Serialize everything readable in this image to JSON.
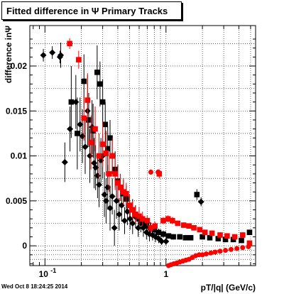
{
  "header": {
    "title": "Fitted difference in  Ψ   Primary Tracks",
    "timestamp": "Wed Oct  8 18:24:25 2014"
  },
  "colors": {
    "series_black": "#000000",
    "series_red": "#ff0000",
    "grid": "#000000"
  },
  "chart_data": {
    "type": "scatter",
    "xlabel": "pT/|q| (GeV/c)",
    "ylabel": "difference inΨ",
    "x_scale": "log",
    "xlim": [
      0.075,
      5.5
    ],
    "ylim": [
      -0.0022,
      0.0245
    ],
    "grid": true,
    "x_tick_labels": [
      "10",
      "1"
    ],
    "x_tick_exponent": "-1",
    "y_tick_labels": [
      "0",
      "0.005",
      "0.01",
      "0.015",
      "0.02"
    ],
    "y_ticks": [
      0,
      0.005,
      0.01,
      0.015,
      0.02
    ],
    "series": [
      {
        "marker": "diamond",
        "color": "#000000",
        "points": [
          [
            0.097,
            0.0212,
            0.0007
          ],
          [
            0.115,
            0.0215,
            0.0007
          ],
          [
            0.133,
            0.021,
            0.0007
          ],
          [
            0.135,
            0.0212,
            0.0014
          ],
          [
            0.146,
            0.0093,
            0.0022
          ],
          [
            0.161,
            0.013,
            0.0025
          ],
          [
            0.18,
            0.016,
            0.003
          ],
          [
            0.195,
            0.0135,
            0.003
          ],
          [
            0.204,
            0.0122,
            0.003
          ],
          [
            0.215,
            0.011,
            0.003
          ],
          [
            0.225,
            0.015,
            0.004
          ],
          [
            0.235,
            0.01,
            0.003
          ],
          [
            0.245,
            0.0132,
            0.003
          ],
          [
            0.255,
            0.0092,
            0.0028
          ],
          [
            0.262,
            0.0087,
            0.0025
          ],
          [
            0.272,
            0.0078,
            0.0025
          ],
          [
            0.28,
            0.0068,
            0.0025
          ],
          [
            0.29,
            0.0095,
            0.0025
          ],
          [
            0.3,
            0.01,
            0.0025
          ],
          [
            0.31,
            0.0057,
            0.0025
          ],
          [
            0.32,
            0.005,
            0.0025
          ],
          [
            0.33,
            0.0065,
            0.0025
          ],
          [
            0.345,
            0.0042,
            0.0025
          ],
          [
            0.36,
            0.0055,
            0.002
          ],
          [
            0.375,
            0.002,
            0.002
          ],
          [
            0.39,
            0.005,
            0.002
          ],
          [
            0.41,
            0.0035,
            0.0018
          ],
          [
            0.43,
            0.0045,
            0.0018
          ],
          [
            0.455,
            0.0028,
            0.0015
          ],
          [
            0.48,
            0.0038,
            0.0015
          ],
          [
            0.505,
            0.003,
            0.0012
          ],
          [
            0.53,
            0.0025,
            0.0012
          ],
          [
            0.56,
            0.0032,
            0.0012
          ],
          [
            0.59,
            0.002,
            0.001
          ],
          [
            0.62,
            0.0025,
            0.001
          ],
          [
            0.65,
            0.002,
            0.001
          ],
          [
            0.69,
            0.0015,
            0.0008
          ],
          [
            0.73,
            0.0013,
            0.0008
          ],
          [
            0.775,
            0.0012,
            0.0006
          ],
          [
            0.82,
            0.001,
            0.0006
          ],
          [
            0.87,
            0.0008,
            0.0005
          ],
          [
            0.92,
            0.0005,
            0.0004
          ],
          [
            1.0,
            0.0005,
            0.0004
          ],
          [
            1.95,
            0.0049,
            0.0005
          ]
        ]
      },
      {
        "marker": "square",
        "color": "#000000",
        "points": [
          [
            0.165,
            0.016,
            0.004
          ],
          [
            0.185,
            0.0125,
            0.004
          ],
          [
            0.21,
            0.0183,
            0.003
          ],
          [
            0.23,
            0.014,
            0.003
          ],
          [
            0.25,
            0.0128,
            0.003
          ],
          [
            0.27,
            0.0193,
            0.003
          ],
          [
            0.285,
            0.018,
            0.0025
          ],
          [
            0.3,
            0.016,
            0.0025
          ],
          [
            0.315,
            0.0135,
            0.0025
          ],
          [
            0.33,
            0.0108,
            0.0025
          ],
          [
            0.345,
            0.012,
            0.002
          ],
          [
            0.36,
            0.01,
            0.002
          ],
          [
            0.38,
            0.0085,
            0.002
          ],
          [
            0.4,
            0.0072,
            0.0018
          ],
          [
            0.42,
            0.0065,
            0.0015
          ],
          [
            0.445,
            0.0058,
            0.0015
          ],
          [
            0.47,
            0.0052,
            0.0015
          ],
          [
            0.5,
            0.0045,
            0.0012
          ],
          [
            0.53,
            0.004,
            0.0012
          ],
          [
            0.56,
            0.0035,
            0.001
          ],
          [
            0.6,
            0.003,
            0.001
          ],
          [
            0.64,
            0.0026,
            0.0008
          ],
          [
            0.69,
            0.0022,
            0.0008
          ],
          [
            0.74,
            0.002,
            0.0006
          ],
          [
            0.8,
            0.0018,
            0.0005
          ],
          [
            0.87,
            0.0015,
            0.0004
          ],
          [
            0.95,
            0.0013,
            0.0004
          ],
          [
            1.05,
            0.0011,
            0.0003
          ],
          [
            1.15,
            0.001,
            0.0003
          ],
          [
            1.3,
            0.001,
            0.0003
          ],
          [
            1.45,
            0.0009,
            0.0003
          ],
          [
            1.6,
            0.0009,
            0.0003
          ],
          [
            1.8,
            0.0057,
            0.0006
          ],
          [
            2.0,
            0.001,
            0.0003
          ],
          [
            2.3,
            0.0009,
            0.0003
          ],
          [
            2.7,
            0.0008,
            0.0003
          ],
          [
            3.1,
            0.0007,
            0.0003
          ],
          [
            3.6,
            0.0007,
            0.0003
          ],
          [
            4.2,
            0.0006,
            0.0003
          ],
          [
            4.9,
            0.0015,
            0.0003
          ]
        ]
      },
      {
        "marker": "square",
        "color": "#ff0000",
        "points": [
          [
            0.16,
            0.0225,
            0.0006
          ],
          [
            0.19,
            0.0207,
            0.001
          ],
          [
            0.21,
            0.0142,
            0.0025
          ],
          [
            0.225,
            0.0162,
            0.003
          ],
          [
            0.24,
            0.0115,
            0.003
          ],
          [
            0.26,
            0.013,
            0.0025
          ],
          [
            0.28,
            0.01,
            0.0025
          ],
          [
            0.3,
            0.0113,
            0.0025
          ],
          [
            0.32,
            0.0103,
            0.0025
          ],
          [
            0.34,
            0.008,
            0.002
          ],
          [
            0.36,
            0.01,
            0.002
          ],
          [
            0.38,
            0.008,
            0.0018
          ],
          [
            0.4,
            0.007,
            0.0018
          ],
          [
            0.42,
            0.0065,
            0.0015
          ],
          [
            0.445,
            0.006,
            0.0015
          ],
          [
            0.47,
            0.0058,
            0.0012
          ],
          [
            0.5,
            0.0045,
            0.0012
          ],
          [
            0.53,
            0.004,
            0.001
          ],
          [
            0.56,
            0.0035,
            0.001
          ],
          [
            0.6,
            0.0033,
            0.001
          ],
          [
            0.64,
            0.003,
            0.0008
          ],
          [
            0.7,
            0.0028,
            0.0006
          ],
          [
            0.75,
            0.002,
            0.0006
          ],
          [
            0.81,
            0.0022,
            0.0005
          ],
          [
            0.88,
            0.008,
            0.0005
          ],
          [
            0.95,
            0.0028,
            0.0004
          ],
          [
            1.04,
            0.003,
            0.0004
          ],
          [
            1.13,
            0.0028,
            0.0004
          ],
          [
            1.25,
            0.0025,
            0.0003
          ],
          [
            1.4,
            0.0023,
            0.0003
          ],
          [
            1.55,
            0.0022,
            0.0003
          ],
          [
            1.7,
            0.002,
            0.0003
          ],
          [
            1.9,
            0.0018,
            0.0003
          ],
          [
            2.1,
            0.0015,
            0.0003
          ],
          [
            2.4,
            0.0014,
            0.0003
          ],
          [
            2.8,
            0.0012,
            0.0003
          ],
          [
            3.2,
            0.0011,
            0.0003
          ],
          [
            3.7,
            0.001,
            0.0003
          ],
          [
            4.3,
            0.0012,
            0.0003
          ],
          [
            4.9,
            0.0003,
            0.0003
          ]
        ]
      },
      {
        "marker": "circle",
        "color": "#ff0000",
        "points": [
          [
            0.75,
            0.0082,
            0.0003
          ],
          [
            0.86,
            0.0082,
            0.0003
          ],
          [
            1.05,
            -0.0022,
            0.0002
          ],
          [
            1.1,
            -0.0021,
            0.0002
          ],
          [
            1.16,
            -0.002,
            0.0002
          ],
          [
            1.23,
            -0.0019,
            0.0002
          ],
          [
            1.3,
            -0.0018,
            0.0002
          ],
          [
            1.38,
            -0.0017,
            0.0002
          ],
          [
            1.46,
            -0.0016,
            0.0002
          ],
          [
            1.55,
            -0.0015,
            0.0002
          ],
          [
            1.65,
            -0.0013,
            0.0002
          ],
          [
            1.76,
            -0.0011,
            0.0002
          ],
          [
            1.88,
            -0.001,
            0.0002
          ],
          [
            2.0,
            -0.001,
            0.0002
          ],
          [
            2.15,
            -0.0009,
            0.0002
          ],
          [
            2.35,
            -0.0008,
            0.0002
          ],
          [
            2.55,
            -0.0007,
            0.0002
          ],
          [
            2.8,
            -0.0006,
            0.0002
          ],
          [
            3.1,
            -0.0005,
            0.0002
          ],
          [
            3.45,
            -0.0004,
            0.0002
          ],
          [
            3.85,
            -0.0003,
            0.0002
          ],
          [
            4.3,
            -0.0002,
            0.0002
          ],
          [
            4.8,
            -0.0001,
            0.0002
          ]
        ]
      }
    ]
  }
}
